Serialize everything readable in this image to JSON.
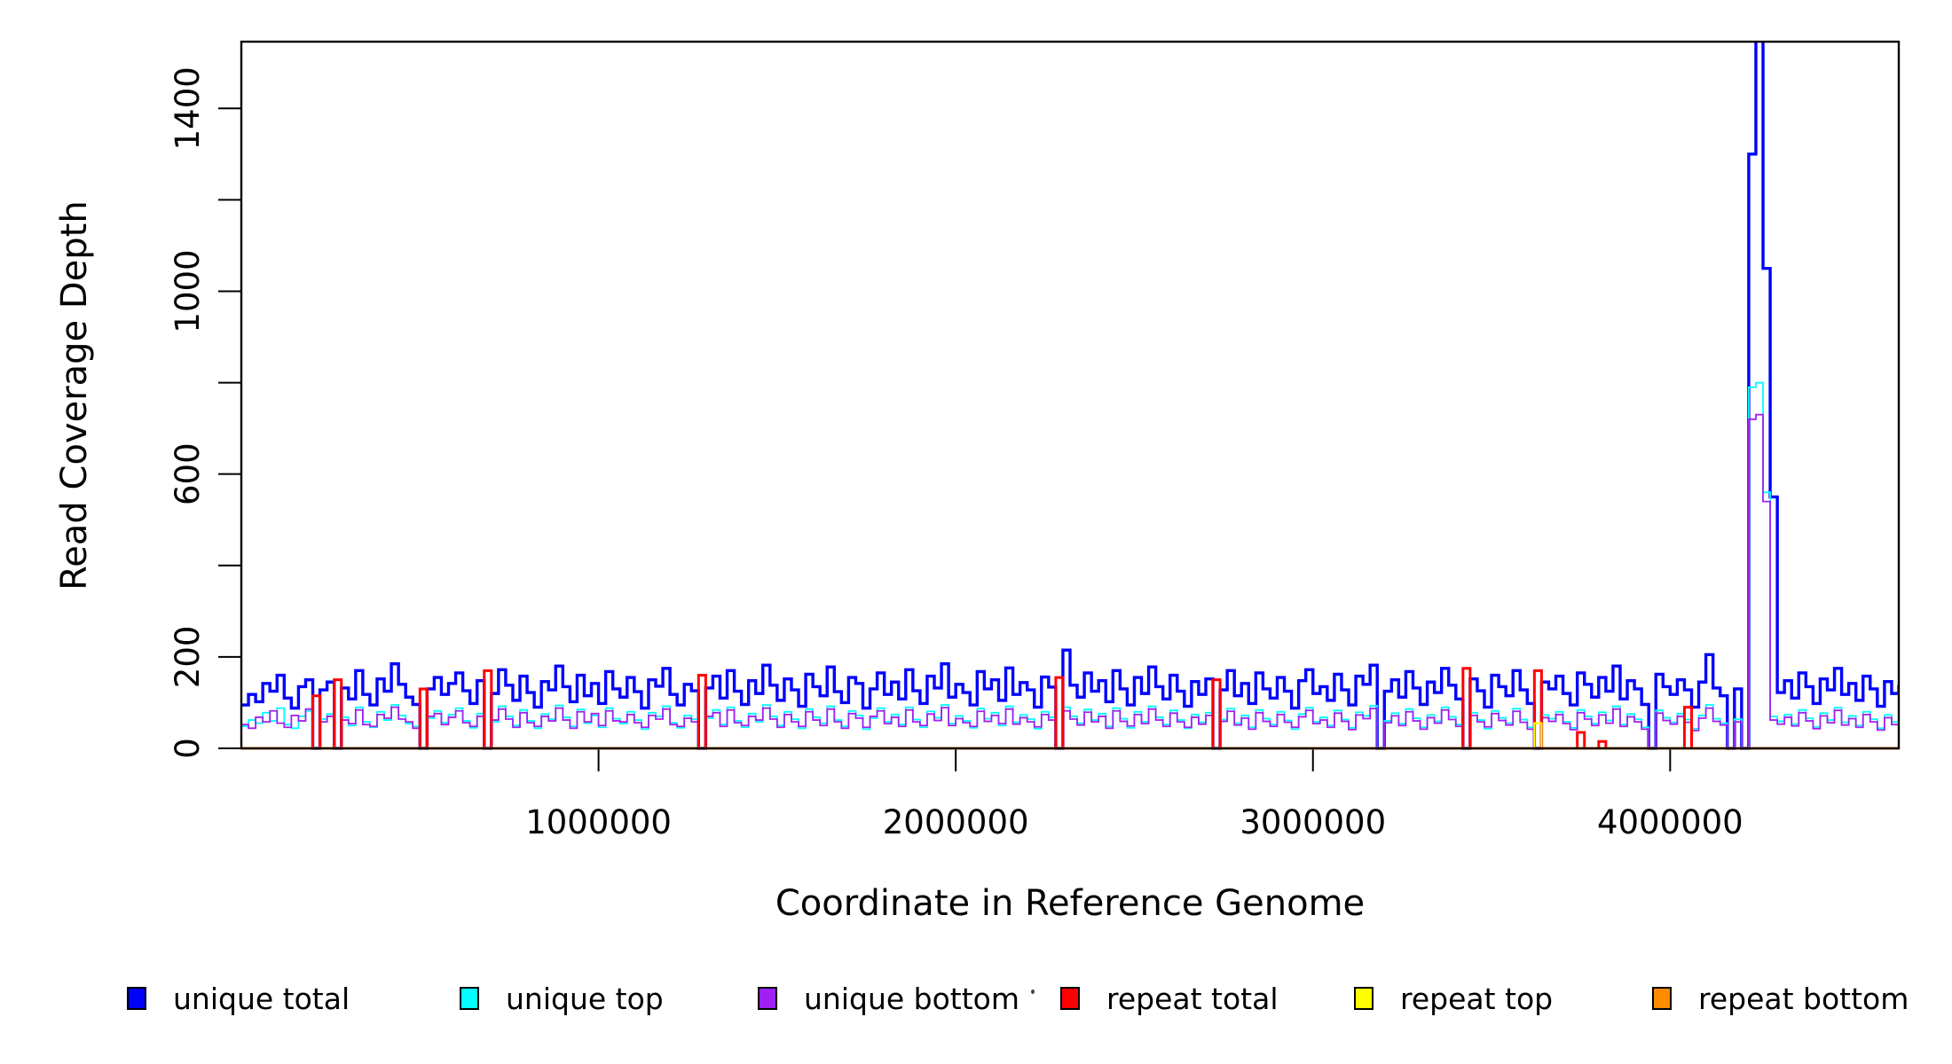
{
  "chart_data": {
    "type": "line",
    "subtype": "step-coverage-plot",
    "title": "",
    "xlabel": "Coordinate in Reference Genome",
    "ylabel": "Read Coverage Depth",
    "xlim": [
      0,
      4640000
    ],
    "ylim": [
      0,
      1546
    ],
    "grid": false,
    "bin_size_bp": 20000,
    "x_ticks": [
      {
        "value": 1000000,
        "label": "1000000"
      },
      {
        "value": 2000000,
        "label": "2000000"
      },
      {
        "value": 3000000,
        "label": "3000000"
      },
      {
        "value": 4000000,
        "label": "4000000"
      }
    ],
    "y_ticks": [
      {
        "value": 0,
        "label": "0"
      },
      {
        "value": 200,
        "label": "200"
      },
      {
        "value": 400,
        "label": ""
      },
      {
        "value": 600,
        "label": "600"
      },
      {
        "value": 800,
        "label": ""
      },
      {
        "value": 1000,
        "label": "1000"
      },
      {
        "value": 1200,
        "label": ""
      },
      {
        "value": 1400,
        "label": "1400"
      }
    ],
    "legend": {
      "position": "bottom-horizontal"
    },
    "series": [
      {
        "name": "unique total",
        "color": "#0000FF",
        "line_width": 3.4,
        "values": [
          95,
          118,
          102,
          142,
          125,
          160,
          110,
          88,
          135,
          150,
          0,
          128,
          145,
          0,
          132,
          108,
          170,
          118,
          95,
          152,
          125,
          185,
          140,
          112,
          96,
          0,
          130,
          155,
          118,
          142,
          165,
          126,
          98,
          148,
          0,
          120,
          172,
          138,
          105,
          158,
          122,
          90,
          146,
          128,
          180,
          135,
          102,
          160,
          115,
          142,
          98,
          168,
          130,
          112,
          155,
          124,
          88,
          150,
          136,
          175,
          118,
          95,
          140,
          126,
          0,
          132,
          158,
          110,
          170,
          125,
          96,
          148,
          120,
          182,
          138,
          105,
          152,
          128,
          92,
          162,
          135,
          115,
          178,
          124,
          100,
          155,
          142,
          88,
          130,
          165,
          118,
          145,
          108,
          172,
          126,
          98,
          158,
          132,
          185,
          112,
          140,
          122,
          95,
          168,
          130,
          150,
          105,
          176,
          118,
          144,
          128,
          90,
          156,
          134,
          0,
          215,
          138,
          112,
          165,
          125,
          148,
          102,
          170,
          130,
          95,
          155,
          120,
          178,
          135,
          108,
          160,
          125,
          92,
          146,
          118,
          152,
          0,
          128,
          170,
          115,
          142,
          98,
          165,
          130,
          110,
          155,
          125,
          88,
          148,
          172,
          120,
          135,
          105,
          162,
          128,
          95,
          158,
          140,
          182,
          0,
          125,
          150,
          112,
          168,
          132,
          96,
          145,
          122,
          175,
          138,
          108,
          0,
          152,
          126,
          90,
          160,
          135,
          115,
          170,
          128,
          98,
          0,
          145,
          130,
          158,
          120,
          95,
          165,
          140,
          112,
          155,
          125,
          180,
          108,
          148,
          130,
          96,
          0,
          162,
          135,
          118,
          150,
          128,
          90,
          145,
          205,
          132,
          115,
          0,
          130,
          0,
          1300,
          1600,
          1050,
          550,
          122,
          148,
          110,
          165,
          135,
          98,
          152,
          128,
          175,
          118,
          142,
          105,
          158,
          130,
          92,
          146,
          120,
          135
        ]
      },
      {
        "name": "unique top",
        "color": "#00FFFF",
        "line_width": 1.8,
        "values": [
          48,
          62,
          55,
          78,
          60,
          88,
          52,
          44,
          70,
          82,
          0,
          64,
          75,
          0,
          68,
          50,
          90,
          58,
          46,
          80,
          62,
          95,
          72,
          54,
          48,
          0,
          66,
          82,
          56,
          74,
          88,
          60,
          45,
          76,
          0,
          58,
          92,
          70,
          50,
          84,
          60,
          44,
          75,
          64,
          94,
          68,
          48,
          85,
          55,
          72,
          46,
          88,
          65,
          54,
          80,
          62,
          42,
          78,
          70,
          92,
          56,
          45,
          72,
          64,
          0,
          66,
          84,
          52,
          90,
          60,
          46,
          76,
          58,
          95,
          70,
          50,
          80,
          64,
          44,
          86,
          68,
          55,
          92,
          62,
          48,
          82,
          72,
          42,
          66,
          88,
          58,
          74,
          52,
          90,
          63,
          46,
          81,
          67,
          95,
          54,
          71,
          60,
          45,
          87,
          65,
          78,
          50,
          92,
          57,
          73,
          64,
          43,
          80,
          68,
          0,
          90,
          70,
          55,
          85,
          62,
          76,
          48,
          88,
          65,
          45,
          80,
          58,
          92,
          68,
          52,
          83,
          62,
          44,
          74,
          57,
          78,
          0,
          63,
          87,
          55,
          72,
          46,
          84,
          65,
          52,
          80,
          61,
          42,
          75,
          89,
          58,
          68,
          50,
          83,
          63,
          45,
          79,
          71,
          93,
          0,
          60,
          77,
          54,
          86,
          66,
          46,
          73,
          59,
          90,
          69,
          52,
          0,
          78,
          62,
          43,
          82,
          67,
          55,
          87,
          63,
          46,
          0,
          73,
          65,
          80,
          58,
          45,
          84,
          70,
          54,
          79,
          61,
          92,
          52,
          75,
          64,
          46,
          0,
          83,
          67,
          57,
          76,
          63,
          43,
          72,
          95,
          65,
          55,
          0,
          64,
          0,
          790,
          800,
          560,
          70,
          59,
          74,
          53,
          84,
          66,
          47,
          77,
          62,
          89,
          57,
          71,
          50,
          80,
          64,
          44,
          73,
          58,
          66
        ]
      },
      {
        "name": "unique bottom",
        "color": "#A020F0",
        "line_width": 1.8,
        "values": [
          52,
          44,
          68,
          58,
          82,
          55,
          46,
          72,
          60,
          86,
          0,
          58,
          70,
          0,
          62,
          54,
          84,
          52,
          48,
          74,
          66,
          90,
          64,
          58,
          44,
          0,
          70,
          76,
          52,
          68,
          82,
          56,
          48,
          70,
          0,
          62,
          86,
          64,
          46,
          78,
          56,
          48,
          70,
          60,
          88,
          62,
          44,
          80,
          58,
          76,
          50,
          82,
          60,
          58,
          74,
          56,
          46,
          72,
          64,
          86,
          52,
          48,
          66,
          58,
          0,
          70,
          78,
          48,
          84,
          56,
          50,
          70,
          62,
          88,
          64,
          46,
          74,
          58,
          48,
          80,
          62,
          50,
          86,
          58,
          44,
          76,
          66,
          46,
          70,
          82,
          54,
          68,
          48,
          84,
          58,
          50,
          75,
          61,
          89,
          50,
          65,
          56,
          48,
          81,
          59,
          72,
          54,
          86,
          53,
          67,
          58,
          47,
          74,
          62,
          0,
          82,
          64,
          51,
          79,
          58,
          70,
          44,
          82,
          59,
          49,
          74,
          54,
          86,
          62,
          48,
          77,
          58,
          46,
          68,
          53,
          72,
          0,
          59,
          81,
          51,
          66,
          42,
          78,
          59,
          48,
          74,
          57,
          46,
          69,
          83,
          54,
          62,
          46,
          77,
          59,
          41,
          73,
          65,
          87,
          0,
          56,
          71,
          50,
          80,
          60,
          42,
          67,
          55,
          84,
          63,
          48,
          0,
          72,
          58,
          47,
          76,
          61,
          51,
          81,
          57,
          42,
          0,
          67,
          59,
          74,
          54,
          41,
          78,
          64,
          50,
          73,
          55,
          86,
          48,
          69,
          58,
          42,
          0,
          77,
          61,
          53,
          70,
          57,
          39,
          66,
          88,
          59,
          51,
          0,
          58,
          0,
          720,
          730,
          540,
          62,
          53,
          68,
          49,
          78,
          60,
          43,
          71,
          56,
          83,
          51,
          65,
          46,
          74,
          58,
          40,
          67,
          52,
          60
        ]
      },
      {
        "name": "repeat total",
        "color": "#FF0000",
        "line_width": 3.0,
        "sparse": {
          "base": 0,
          "length": 233,
          "points": {
            "10": 115,
            "13": 150,
            "25": 130,
            "34": 170,
            "64": 160,
            "114": 155,
            "136": 150,
            "171": 175,
            "181": 170,
            "187": 35,
            "190": 15,
            "202": 90
          }
        }
      },
      {
        "name": "repeat top",
        "color": "#FFFF00",
        "line_width": 2.2,
        "sparse": {
          "base": 0,
          "length": 233,
          "points": {
            "181": 55
          }
        }
      },
      {
        "name": "repeat bottom",
        "color": "#FF8C00",
        "line_width": 3.0,
        "sparse": {
          "base": 0,
          "length": 233,
          "points": {}
        }
      }
    ]
  },
  "legend_layout": {
    "item_lefts": [
      143,
      518,
      854,
      1195,
      1526,
      1862
    ]
  },
  "colors": {
    "axis": "#000000",
    "background": "#FFFFFF"
  }
}
